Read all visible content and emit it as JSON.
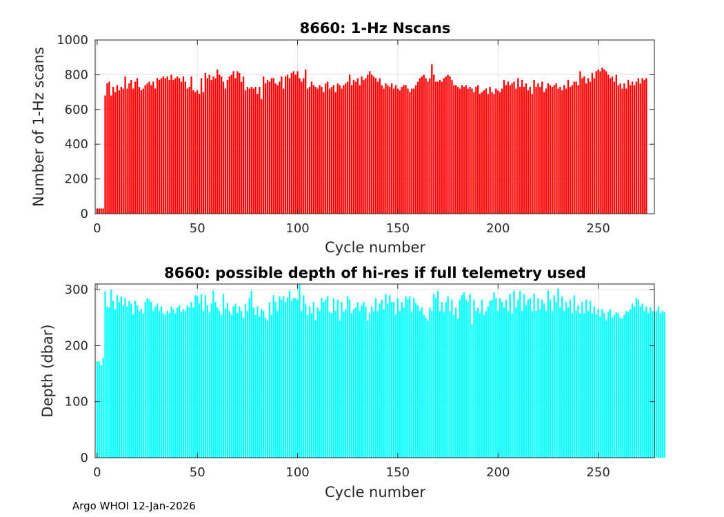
{
  "chart_data": [
    {
      "type": "bar",
      "title": "8660: 1-Hz Nscans",
      "xlabel": "Cycle number",
      "ylabel": "Number of 1-Hz scans",
      "color": "#ff0000",
      "xlim": [
        -1,
        278
      ],
      "ylim": [
        0,
        1000
      ],
      "xticks": [
        0,
        50,
        100,
        150,
        200,
        250
      ],
      "xtick_labels": [
        "0",
        "50",
        "100",
        "150",
        "200",
        "250"
      ],
      "yticks": [
        0,
        200,
        400,
        600,
        800,
        1000
      ],
      "ytick_labels": [
        "0",
        "200",
        "400",
        "600",
        "800",
        "1000"
      ],
      "grid": true,
      "values": [
        30,
        30,
        30,
        30,
        680,
        750,
        760,
        680,
        730,
        700,
        740,
        710,
        730,
        720,
        790,
        720,
        750,
        770,
        720,
        760,
        780,
        730,
        710,
        720,
        740,
        750,
        760,
        740,
        760,
        720,
        780,
        770,
        780,
        790,
        780,
        790,
        770,
        800,
        770,
        780,
        790,
        780,
        760,
        790,
        760,
        720,
        730,
        790,
        710,
        700,
        710,
        690,
        780,
        700,
        810,
        780,
        800,
        770,
        790,
        780,
        830,
        800,
        790,
        760,
        720,
        770,
        790,
        800,
        820,
        780,
        820,
        810,
        760,
        790,
        710,
        730,
        720,
        730,
        720,
        730,
        690,
        730,
        660,
        790,
        750,
        770,
        760,
        780,
        780,
        750,
        740,
        760,
        790,
        720,
        790,
        800,
        780,
        810,
        820,
        800,
        820,
        780,
        760,
        780,
        830,
        720,
        730,
        760,
        740,
        730,
        720,
        740,
        730,
        700,
        750,
        760,
        720,
        730,
        740,
        700,
        750,
        740,
        720,
        740,
        750,
        760,
        800,
        740,
        770,
        760,
        780,
        740,
        790,
        770,
        780,
        800,
        820,
        800,
        790,
        780,
        760,
        780,
        740,
        720,
        750,
        740,
        730,
        750,
        720,
        740,
        720,
        710,
        730,
        740,
        740,
        720,
        700,
        720,
        720,
        740,
        760,
        780,
        790,
        800,
        780,
        760,
        780,
        860,
        800,
        760,
        760,
        770,
        760,
        780,
        790,
        800,
        790,
        770,
        740,
        740,
        730,
        720,
        740,
        730,
        740,
        720,
        730,
        720,
        700,
        730,
        740,
        690,
        700,
        710,
        720,
        690,
        730,
        700,
        690,
        720,
        710,
        700,
        720,
        770,
        740,
        760,
        740,
        750,
        760,
        720,
        780,
        730,
        770,
        730,
        750,
        710,
        730,
        690,
        770,
        730,
        750,
        730,
        760,
        700,
        720,
        750,
        740,
        730,
        740,
        750,
        720,
        730,
        710,
        740,
        720,
        770,
        730,
        740,
        760,
        760,
        740,
        820,
        780,
        790,
        750,
        780,
        760,
        810,
        780,
        820,
        830,
        820,
        840,
        830,
        820,
        800,
        780,
        790,
        760,
        800,
        740,
        750,
        720,
        750,
        720,
        770,
        740,
        760,
        740,
        760,
        780,
        750,
        780,
        770,
        780
      ],
      "x_start": 0
    },
    {
      "type": "bar",
      "title": "8660: possible depth of hi-res if full telemetry used",
      "xlabel": "Cycle number",
      "ylabel": "Depth (dbar)",
      "color": "#00ffff",
      "xlim": [
        -1,
        278
      ],
      "ylim": [
        0,
        310
      ],
      "xticks": [
        0,
        50,
        100,
        150,
        200,
        250
      ],
      "xtick_labels": [
        "0",
        "50",
        "100",
        "150",
        "200",
        "250"
      ],
      "yticks": [
        0,
        100,
        200,
        300
      ],
      "ytick_labels": [
        "0",
        "100",
        "200",
        "300"
      ],
      "grid": true,
      "values": [
        172,
        172,
        165,
        178,
        297,
        270,
        268,
        300,
        280,
        265,
        290,
        278,
        288,
        272,
        285,
        270,
        280,
        275,
        256,
        280,
        272,
        262,
        266,
        258,
        278,
        285,
        282,
        278,
        262,
        270,
        275,
        262,
        270,
        258,
        255,
        262,
        258,
        270,
        265,
        258,
        268,
        272,
        260,
        265,
        262,
        272,
        268,
        278,
        268,
        290,
        288,
        275,
        292,
        262,
        290,
        272,
        260,
        275,
        298,
        278,
        268,
        262,
        255,
        292,
        266,
        276,
        262,
        255,
        270,
        275,
        258,
        270,
        262,
        250,
        275,
        262,
        285,
        298,
        268,
        255,
        270,
        252,
        265,
        262,
        250,
        245,
        278,
        255,
        290,
        278,
        262,
        288,
        282,
        288,
        278,
        286,
        298,
        280,
        285,
        285,
        282,
        310,
        262,
        290,
        275,
        255,
        270,
        258,
        278,
        245,
        268,
        262,
        285,
        278,
        282,
        288,
        260,
        258,
        285,
        262,
        282,
        245,
        278,
        260,
        265,
        288,
        282,
        258,
        265,
        268,
        278,
        262,
        272,
        278,
        270,
        245,
        258,
        270,
        262,
        285,
        262,
        275,
        282,
        265,
        292,
        275,
        290,
        278,
        278,
        256,
        285,
        262,
        278,
        268,
        288,
        282,
        288,
        260,
        285,
        276,
        272,
        262,
        268,
        255,
        250,
        245,
        268,
        262,
        292,
        285,
        298,
        262,
        278,
        260,
        278,
        288,
        262,
        282,
        255,
        268,
        248,
        282,
        290,
        295,
        282,
        278,
        292,
        238,
        282,
        262,
        268,
        258,
        282,
        255,
        262,
        270,
        280,
        282,
        295,
        285,
        262,
        285,
        278,
        268,
        282,
        262,
        292,
        258,
        298,
        268,
        282,
        298,
        262,
        292,
        272,
        282,
        285,
        262,
        292,
        262,
        285,
        265,
        282,
        275,
        262,
        298,
        282,
        262,
        290,
        278,
        302,
        268,
        288,
        262,
        278,
        268,
        282,
        258,
        290,
        262,
        272,
        258,
        278,
        258,
        282,
        262,
        280,
        258,
        270,
        256,
        266,
        252,
        265,
        258,
        245,
        260,
        265,
        250,
        255,
        260,
        258,
        250,
        248,
        255,
        262,
        260,
        265,
        275,
        270,
        285,
        282,
        270,
        275,
        262,
        270,
        258,
        268,
        262,
        260,
        262,
        270,
        258,
        262,
        260
      ],
      "x_start": 0
    }
  ],
  "footer": "Argo WHOI 12-Jan-2026"
}
